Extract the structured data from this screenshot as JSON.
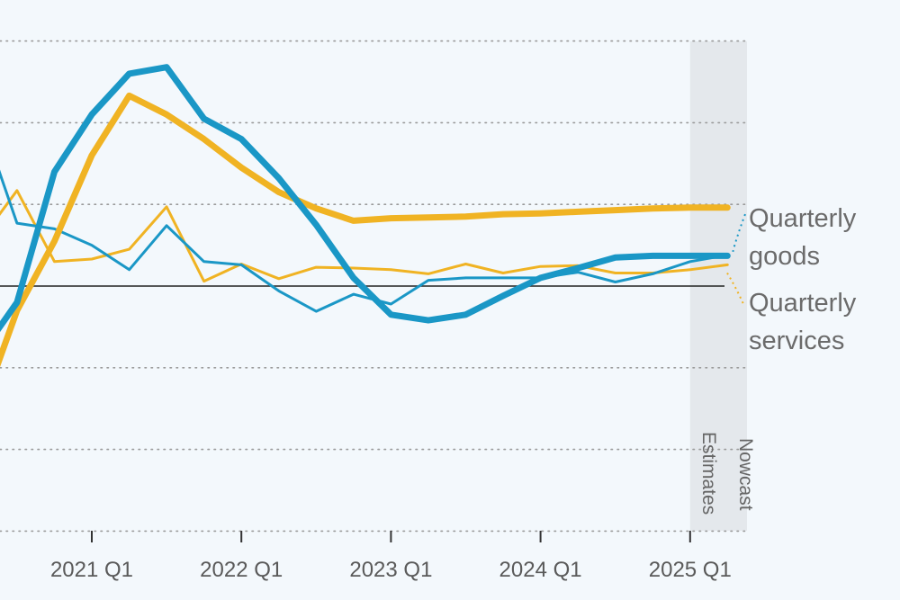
{
  "chart_data": {
    "type": "line",
    "title": "",
    "xlabel": "",
    "ylabel": "",
    "x_tick_labels": [
      "2021 Q1",
      "2022 Q1",
      "2023 Q1",
      "2024 Q1",
      "2025 Q1"
    ],
    "grid": "horizontal dotted",
    "shaded_region": {
      "from": "2025 Q1",
      "to": "2025 Q2",
      "labels": [
        "Nowcast",
        "Estimates"
      ]
    },
    "y_range": [
      -3,
      3
    ],
    "series": [
      {
        "name": "Quarterly goods",
        "style": "thin",
        "color": "#1a97c6",
        "x": [
          2020.0,
          2020.25,
          2020.5,
          2020.75,
          2021.0,
          2021.25,
          2021.5,
          2021.75,
          2022.0,
          2022.25,
          2022.5,
          2022.75,
          2023.0,
          2023.25,
          2023.5,
          2023.75,
          2024.0,
          2024.25,
          2024.5,
          2024.75,
          2025.0,
          2025.25
        ],
        "values": [
          -1.6,
          2.1,
          0.77,
          0.7,
          0.5,
          0.2,
          0.74,
          0.3,
          0.26,
          -0.06,
          -0.31,
          -0.1,
          -0.22,
          0.07,
          0.1,
          0.1,
          0.1,
          0.17,
          0.05,
          0.15,
          0.3,
          0.38
        ]
      },
      {
        "name": "Quarterly services",
        "style": "thin",
        "color": "#f0b323",
        "x": [
          2020.0,
          2020.25,
          2020.5,
          2020.75,
          2021.0,
          2021.25,
          2021.5,
          2021.75,
          2022.0,
          2022.25,
          2022.5,
          2022.75,
          2023.0,
          2023.25,
          2023.5,
          2023.75,
          2024.0,
          2024.25,
          2024.5,
          2024.75,
          2025.0,
          2025.25
        ],
        "values": [
          -0.9,
          0.55,
          1.17,
          0.3,
          0.33,
          0.45,
          0.97,
          0.06,
          0.27,
          0.09,
          0.23,
          0.22,
          0.2,
          0.15,
          0.27,
          0.16,
          0.24,
          0.25,
          0.16,
          0.16,
          0.2,
          0.26
        ]
      },
      {
        "name": "Goods",
        "style": "thick",
        "color": "#1a97c6",
        "x": [
          2020.0,
          2020.25,
          2020.5,
          2020.75,
          2021.0,
          2021.25,
          2021.5,
          2021.75,
          2022.0,
          2022.25,
          2022.5,
          2022.75,
          2023.0,
          2023.25,
          2023.5,
          2023.75,
          2024.0,
          2024.25,
          2024.5,
          2024.75,
          2025.0,
          2025.25
        ],
        "values": [
          -1.0,
          -0.85,
          -0.2,
          1.4,
          2.1,
          2.6,
          2.68,
          2.05,
          1.8,
          1.32,
          0.75,
          0.1,
          -0.35,
          -0.42,
          -0.35,
          -0.12,
          0.1,
          0.22,
          0.35,
          0.37,
          0.37,
          0.37
        ]
      },
      {
        "name": "Services",
        "style": "thick",
        "color": "#f0b323",
        "x": [
          2020.0,
          2020.25,
          2020.5,
          2020.75,
          2021.0,
          2021.25,
          2021.5,
          2021.75,
          2022.0,
          2022.25,
          2022.5,
          2022.75,
          2023.0,
          2023.25,
          2023.5,
          2023.75,
          2024.0,
          2024.25,
          2024.5,
          2024.75,
          2025.0,
          2025.25
        ],
        "values": [
          -1.55,
          -1.57,
          -0.3,
          0.55,
          1.6,
          2.33,
          2.1,
          1.8,
          1.45,
          1.15,
          0.95,
          0.8,
          0.83,
          0.84,
          0.85,
          0.88,
          0.89,
          0.91,
          0.93,
          0.95,
          0.96,
          0.96
        ]
      }
    ],
    "legend": [
      {
        "lines": [
          "Quarterly",
          "goods"
        ],
        "color": "#1a97c6"
      },
      {
        "lines": [
          "Quarterly",
          "services"
        ],
        "color": "#f0b323"
      }
    ]
  }
}
